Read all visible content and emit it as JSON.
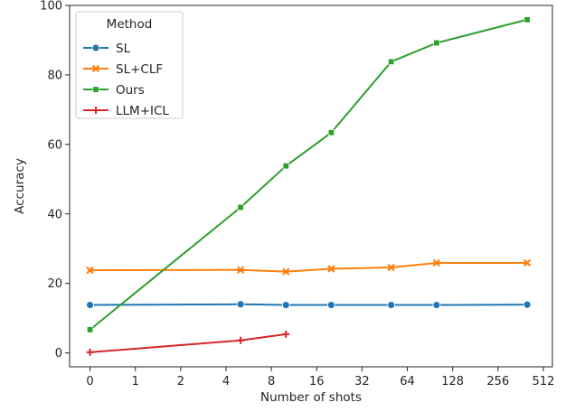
{
  "chart_data": {
    "type": "line",
    "xlabel": "Number of shots",
    "ylabel": "Accuracy",
    "ylim": [
      -4,
      100
    ],
    "x_scale": "symlog (base 2)",
    "x_ticks": [
      0,
      1,
      2,
      4,
      8,
      16,
      32,
      64,
      128,
      256,
      512
    ],
    "x_tick_labels": [
      "0",
      "1",
      "2",
      "4",
      "8",
      "16",
      "32",
      "64",
      "128",
      "256",
      "512"
    ],
    "y_ticks": [
      0,
      20,
      40,
      60,
      80,
      100
    ],
    "y_tick_labels": [
      "0",
      "20",
      "40",
      "60",
      "80",
      "100"
    ],
    "grid": false,
    "legend": {
      "title": "Method",
      "placement": "top-left"
    },
    "series": [
      {
        "name": "SL",
        "color": "#1f77b4",
        "marker": "circle",
        "points": [
          [
            0,
            13.8
          ],
          [
            5,
            14.0
          ],
          [
            10,
            13.8
          ],
          [
            20,
            13.8
          ],
          [
            50,
            13.8
          ],
          [
            100,
            13.8
          ],
          [
            400,
            13.9
          ]
        ]
      },
      {
        "name": "SL+CLF",
        "color": "#ff7f0e",
        "marker": "x",
        "points": [
          [
            0,
            23.8
          ],
          [
            5,
            23.9
          ],
          [
            10,
            23.4
          ],
          [
            20,
            24.2
          ],
          [
            50,
            24.6
          ],
          [
            100,
            25.9
          ],
          [
            400,
            25.9
          ]
        ]
      },
      {
        "name": "Ours",
        "color": "#2ca02c",
        "marker": "square",
        "points": [
          [
            0,
            6.7
          ],
          [
            5,
            41.9
          ],
          [
            10,
            53.8
          ],
          [
            20,
            63.4
          ],
          [
            50,
            83.8
          ],
          [
            100,
            89.2
          ],
          [
            400,
            95.9
          ]
        ]
      },
      {
        "name": "LLM+ICL",
        "color": "#d62728",
        "marker": "plus",
        "points": [
          [
            0,
            0.2
          ],
          [
            5,
            3.6
          ],
          [
            10,
            5.4
          ]
        ]
      }
    ]
  }
}
